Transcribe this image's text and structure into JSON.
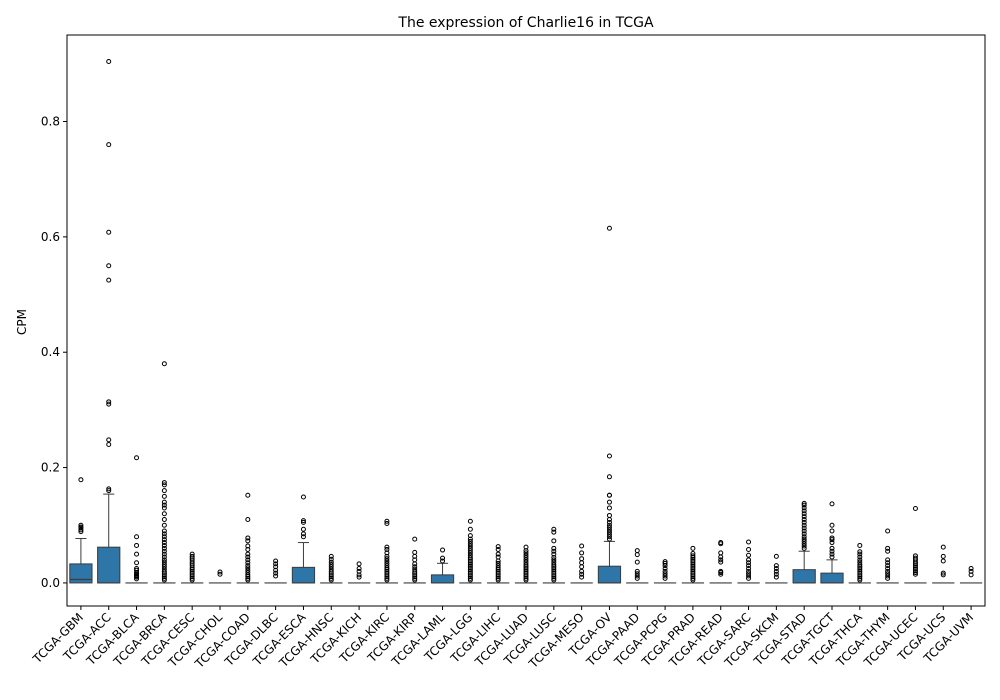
{
  "chart_data": {
    "type": "box",
    "title": "The expression of Charlie16 in TCGA",
    "xlabel": "",
    "ylabel": "CPM",
    "ylim": [
      -0.04,
      0.95
    ],
    "yticks": [
      "0.0",
      "0.2",
      "0.4",
      "0.6",
      "0.8"
    ],
    "grid": false,
    "colors": {
      "box": "#2e75a8",
      "edge": "#3c3c3c",
      "outlier": "#000000"
    },
    "categories": [
      "TCGA-GBM",
      "TCGA-ACC",
      "TCGA-BLCA",
      "TCGA-BRCA",
      "TCGA-CESC",
      "TCGA-CHOL",
      "TCGA-COAD",
      "TCGA-DLBC",
      "TCGA-ESCA",
      "TCGA-HNSC",
      "TCGA-KICH",
      "TCGA-KIRC",
      "TCGA-KIRP",
      "TCGA-LAML",
      "TCGA-LGG",
      "TCGA-LIHC",
      "TCGA-LUAD",
      "TCGA-LUSC",
      "TCGA-MESO",
      "TCGA-OV",
      "TCGA-PAAD",
      "TCGA-PCPG",
      "TCGA-PRAD",
      "TCGA-READ",
      "TCGA-SARC",
      "TCGA-SKCM",
      "TCGA-STAD",
      "TCGA-TGCT",
      "TCGA-THCA",
      "TCGA-THYM",
      "TCGA-UCEC",
      "TCGA-UCS",
      "TCGA-UVM"
    ],
    "boxes": [
      {
        "q1": 0.0,
        "median": 0.006,
        "q3": 0.033,
        "whislo": 0.0,
        "whishi": 0.077,
        "outliers": [
          0.089,
          0.092,
          0.095,
          0.097,
          0.1,
          0.179
        ]
      },
      {
        "q1": 0.0,
        "median": 0.0,
        "q3": 0.062,
        "whislo": 0.0,
        "whishi": 0.154,
        "outliers": [
          0.16,
          0.163,
          0.24,
          0.248,
          0.31,
          0.314,
          0.525,
          0.55,
          0.608,
          0.76,
          0.904
        ]
      },
      {
        "q1": 0.0,
        "median": 0.0,
        "q3": 0.0,
        "whislo": 0.0,
        "whishi": 0.0,
        "outliers": [
          0.007,
          0.01,
          0.012,
          0.014,
          0.016,
          0.018,
          0.022,
          0.025,
          0.035,
          0.05,
          0.065,
          0.08,
          0.217
        ]
      },
      {
        "q1": 0.0,
        "median": 0.0,
        "q3": 0.0,
        "whislo": 0.0,
        "whishi": 0.0,
        "outliers": [
          0.005,
          0.008,
          0.011,
          0.014,
          0.017,
          0.02,
          0.024,
          0.028,
          0.032,
          0.036,
          0.04,
          0.045,
          0.05,
          0.055,
          0.06,
          0.065,
          0.07,
          0.075,
          0.08,
          0.085,
          0.09,
          0.1,
          0.11,
          0.12,
          0.13,
          0.135,
          0.14,
          0.15,
          0.16,
          0.17,
          0.174,
          0.38
        ]
      },
      {
        "q1": 0.0,
        "median": 0.0,
        "q3": 0.0,
        "whislo": 0.0,
        "whishi": 0.0,
        "outliers": [
          0.005,
          0.008,
          0.011,
          0.014,
          0.017,
          0.02,
          0.023,
          0.026,
          0.03,
          0.033,
          0.036,
          0.04,
          0.043,
          0.046,
          0.05
        ]
      },
      {
        "q1": 0.0,
        "median": 0.0,
        "q3": 0.0,
        "whislo": 0.0,
        "whishi": 0.0,
        "outliers": [
          0.015,
          0.019
        ]
      },
      {
        "q1": 0.0,
        "median": 0.0,
        "q3": 0.0,
        "whislo": 0.0,
        "whishi": 0.0,
        "outliers": [
          0.005,
          0.008,
          0.011,
          0.014,
          0.018,
          0.022,
          0.026,
          0.03,
          0.035,
          0.04,
          0.045,
          0.05,
          0.058,
          0.064,
          0.073,
          0.078,
          0.11,
          0.152
        ]
      },
      {
        "q1": 0.0,
        "median": 0.0,
        "q3": 0.0,
        "whislo": 0.0,
        "whishi": 0.0,
        "outliers": [
          0.012,
          0.017,
          0.022,
          0.028,
          0.033,
          0.038
        ]
      },
      {
        "q1": 0.0,
        "median": 0.0,
        "q3": 0.027,
        "whislo": 0.0,
        "whishi": 0.07,
        "outliers": [
          0.08,
          0.085,
          0.093,
          0.105,
          0.108,
          0.149
        ]
      },
      {
        "q1": 0.0,
        "median": 0.0,
        "q3": 0.0,
        "whislo": 0.0,
        "whishi": 0.0,
        "outliers": [
          0.005,
          0.008,
          0.011,
          0.014,
          0.017,
          0.02,
          0.024,
          0.028,
          0.032,
          0.036,
          0.041,
          0.046
        ]
      },
      {
        "q1": 0.0,
        "median": 0.0,
        "q3": 0.0,
        "whislo": 0.0,
        "whishi": 0.0,
        "outliers": [
          0.01,
          0.014,
          0.02,
          0.025,
          0.033
        ]
      },
      {
        "q1": 0.0,
        "median": 0.0,
        "q3": 0.0,
        "whislo": 0.0,
        "whishi": 0.0,
        "outliers": [
          0.005,
          0.008,
          0.011,
          0.014,
          0.017,
          0.02,
          0.023,
          0.026,
          0.03,
          0.034,
          0.038,
          0.042,
          0.046,
          0.052,
          0.058,
          0.062,
          0.103,
          0.107
        ]
      },
      {
        "q1": 0.0,
        "median": 0.0,
        "q3": 0.0,
        "whislo": 0.0,
        "whishi": 0.0,
        "outliers": [
          0.005,
          0.008,
          0.011,
          0.014,
          0.017,
          0.02,
          0.024,
          0.028,
          0.033,
          0.04,
          0.046,
          0.053,
          0.076
        ]
      },
      {
        "q1": 0.0,
        "median": 0.0,
        "q3": 0.014,
        "whislo": 0.0,
        "whishi": 0.034,
        "outliers": [
          0.038,
          0.043,
          0.057
        ]
      },
      {
        "q1": 0.0,
        "median": 0.0,
        "q3": 0.0,
        "whislo": 0.0,
        "whishi": 0.0,
        "outliers": [
          0.005,
          0.008,
          0.011,
          0.014,
          0.017,
          0.02,
          0.023,
          0.026,
          0.029,
          0.032,
          0.035,
          0.038,
          0.041,
          0.044,
          0.048,
          0.052,
          0.056,
          0.06,
          0.064,
          0.068,
          0.072,
          0.076,
          0.082,
          0.093,
          0.107
        ]
      },
      {
        "q1": 0.0,
        "median": 0.0,
        "q3": 0.0,
        "whislo": 0.0,
        "whishi": 0.0,
        "outliers": [
          0.005,
          0.008,
          0.011,
          0.014,
          0.017,
          0.02,
          0.023,
          0.026,
          0.03,
          0.034,
          0.038,
          0.045,
          0.05,
          0.058,
          0.063
        ]
      },
      {
        "q1": 0.0,
        "median": 0.0,
        "q3": 0.0,
        "whislo": 0.0,
        "whishi": 0.0,
        "outliers": [
          0.005,
          0.008,
          0.011,
          0.014,
          0.017,
          0.02,
          0.023,
          0.026,
          0.029,
          0.032,
          0.036,
          0.04,
          0.044,
          0.048,
          0.052,
          0.056,
          0.062
        ]
      },
      {
        "q1": 0.0,
        "median": 0.0,
        "q3": 0.0,
        "whislo": 0.0,
        "whishi": 0.0,
        "outliers": [
          0.005,
          0.008,
          0.011,
          0.014,
          0.017,
          0.02,
          0.023,
          0.026,
          0.029,
          0.032,
          0.036,
          0.04,
          0.044,
          0.05,
          0.055,
          0.06,
          0.073,
          0.088,
          0.093
        ]
      },
      {
        "q1": 0.0,
        "median": 0.0,
        "q3": 0.0,
        "whislo": 0.0,
        "whishi": 0.0,
        "outliers": [
          0.01,
          0.015,
          0.02,
          0.028,
          0.035,
          0.042,
          0.052,
          0.064
        ]
      },
      {
        "q1": 0.0,
        "median": 0.0,
        "q3": 0.029,
        "whislo": 0.0,
        "whishi": 0.072,
        "outliers": [
          0.076,
          0.08,
          0.084,
          0.088,
          0.092,
          0.096,
          0.1,
          0.105,
          0.11,
          0.117,
          0.13,
          0.14,
          0.152,
          0.152,
          0.184,
          0.22,
          0.615
        ]
      },
      {
        "q1": 0.0,
        "median": 0.0,
        "q3": 0.0,
        "whislo": 0.0,
        "whishi": 0.0,
        "outliers": [
          0.008,
          0.012,
          0.016,
          0.02,
          0.036,
          0.049,
          0.056
        ]
      },
      {
        "q1": 0.0,
        "median": 0.0,
        "q3": 0.0,
        "whislo": 0.0,
        "whishi": 0.0,
        "outliers": [
          0.008,
          0.012,
          0.016,
          0.02,
          0.025,
          0.03,
          0.034,
          0.037
        ]
      },
      {
        "q1": 0.0,
        "median": 0.0,
        "q3": 0.0,
        "whislo": 0.0,
        "whishi": 0.0,
        "outliers": [
          0.005,
          0.008,
          0.011,
          0.014,
          0.017,
          0.02,
          0.023,
          0.026,
          0.029,
          0.032,
          0.035,
          0.038,
          0.041,
          0.044,
          0.047,
          0.051,
          0.06
        ]
      },
      {
        "q1": 0.0,
        "median": 0.0,
        "q3": 0.0,
        "whislo": 0.0,
        "whishi": 0.0,
        "outliers": [
          0.015,
          0.018,
          0.02,
          0.036,
          0.04,
          0.045,
          0.052,
          0.068,
          0.07
        ]
      },
      {
        "q1": 0.0,
        "median": 0.0,
        "q3": 0.0,
        "whislo": 0.0,
        "whishi": 0.0,
        "outliers": [
          0.008,
          0.012,
          0.016,
          0.02,
          0.025,
          0.03,
          0.035,
          0.04,
          0.048,
          0.058,
          0.071
        ]
      },
      {
        "q1": 0.0,
        "median": 0.0,
        "q3": 0.0,
        "whislo": 0.0,
        "whishi": 0.0,
        "outliers": [
          0.01,
          0.015,
          0.02,
          0.025,
          0.03,
          0.046
        ]
      },
      {
        "q1": 0.0,
        "median": 0.0,
        "q3": 0.023,
        "whislo": 0.0,
        "whishi": 0.055,
        "outliers": [
          0.06,
          0.064,
          0.068,
          0.072,
          0.076,
          0.08,
          0.085,
          0.09,
          0.095,
          0.1,
          0.105,
          0.11,
          0.115,
          0.12,
          0.125,
          0.13,
          0.135,
          0.138
        ]
      },
      {
        "q1": 0.0,
        "median": 0.0,
        "q3": 0.017,
        "whislo": 0.0,
        "whishi": 0.04,
        "outliers": [
          0.045,
          0.05,
          0.055,
          0.06,
          0.07,
          0.075,
          0.078,
          0.09,
          0.1,
          0.137
        ]
      },
      {
        "q1": 0.0,
        "median": 0.0,
        "q3": 0.0,
        "whislo": 0.0,
        "whishi": 0.0,
        "outliers": [
          0.005,
          0.008,
          0.011,
          0.014,
          0.017,
          0.02,
          0.023,
          0.026,
          0.029,
          0.032,
          0.036,
          0.04,
          0.045,
          0.05,
          0.054,
          0.065
        ]
      },
      {
        "q1": 0.0,
        "median": 0.0,
        "q3": 0.0,
        "whislo": 0.0,
        "whishi": 0.0,
        "outliers": [
          0.008,
          0.012,
          0.016,
          0.02,
          0.025,
          0.03,
          0.035,
          0.04,
          0.055,
          0.06,
          0.09
        ]
      },
      {
        "q1": 0.0,
        "median": 0.0,
        "q3": 0.0,
        "whislo": 0.0,
        "whishi": 0.0,
        "outliers": [
          0.015,
          0.018,
          0.021,
          0.024,
          0.027,
          0.03,
          0.033,
          0.036,
          0.04,
          0.043,
          0.047,
          0.129
        ]
      },
      {
        "q1": 0.0,
        "median": 0.0,
        "q3": 0.0,
        "whislo": 0.0,
        "whishi": 0.0,
        "outliers": [
          0.014,
          0.017,
          0.038,
          0.046,
          0.062
        ]
      },
      {
        "q1": 0.0,
        "median": 0.0,
        "q3": 0.0,
        "whislo": 0.0,
        "whishi": 0.0,
        "outliers": [
          0.014,
          0.02,
          0.025
        ]
      }
    ]
  }
}
